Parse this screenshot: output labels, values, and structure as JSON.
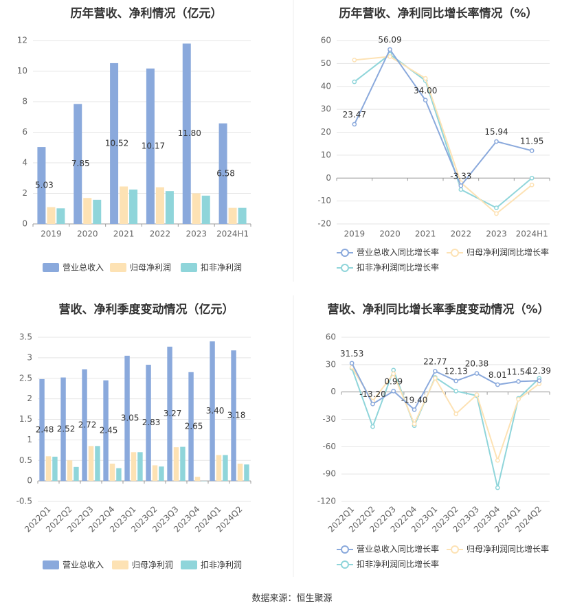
{
  "footer": {
    "source_label": "数据来源：恒生聚源"
  },
  "colors": {
    "revenue": "#8aa9dc",
    "parent_profit": "#fde2b4",
    "deducted_profit": "#8fd5da",
    "yoy_revenue": "#8aa9dc",
    "yoy_parent": "#fde2b4",
    "yoy_deducted": "#8fd5da",
    "grid": "#e5e5e5",
    "axis": "#999999",
    "text": "#666666",
    "title": "#333333",
    "divider": "#eeeeee"
  },
  "chart_data": [
    {
      "id": "annual-bar",
      "type": "bar",
      "title": "历年营收、净利情况（亿元）",
      "categories": [
        "2019",
        "2020",
        "2021",
        "2022",
        "2023",
        "2024H1"
      ],
      "y_ticks": [
        "0",
        "2",
        "4",
        "6",
        "8",
        "10",
        "12"
      ],
      "ylim": [
        0,
        12
      ],
      "series": [
        {
          "name": "营业总收入",
          "values": [
            5.03,
            7.85,
            10.52,
            10.17,
            11.8,
            6.58
          ],
          "labels": [
            "5.03",
            "7.85",
            "10.52",
            "10.17",
            "11.80",
            "6.58"
          ]
        },
        {
          "name": "归母净利润",
          "values": [
            1.1,
            1.7,
            2.45,
            2.4,
            2.0,
            1.05
          ]
        },
        {
          "name": "扣非净利润",
          "values": [
            1.02,
            1.58,
            2.25,
            2.15,
            1.85,
            1.05
          ]
        }
      ],
      "legend": [
        "营业总收入",
        "归母净利润",
        "扣非净利润"
      ]
    },
    {
      "id": "annual-line",
      "type": "line",
      "title": "历年营收、净利同比增长率情况（%）",
      "categories": [
        "2019",
        "2020",
        "2021",
        "2022",
        "2023",
        "2024H1"
      ],
      "y_ticks": [
        "-20",
        "-10",
        "0",
        "10",
        "20",
        "30",
        "40",
        "50",
        "60"
      ],
      "ylim": [
        -20,
        60
      ],
      "series": [
        {
          "name": "营业总收入同比增长率",
          "values": [
            23.47,
            56.09,
            34.0,
            -3.33,
            15.94,
            11.95
          ],
          "labels": [
            "23.47",
            "56.09",
            "34.00",
            "-3.33",
            "15.94",
            "11.95"
          ]
        },
        {
          "name": "归母净利润同比增长率",
          "values": [
            51.5,
            53.0,
            43.5,
            -2.0,
            -15.5,
            -3.0
          ]
        },
        {
          "name": "扣非净利润同比增长率",
          "values": [
            42.0,
            54.0,
            42.5,
            -5.0,
            -13.0,
            0.0
          ]
        }
      ],
      "legend": [
        "营业总收入同比增长率",
        "归母净利润同比增长率",
        "扣非净利润同比增长率"
      ]
    },
    {
      "id": "quarter-bar",
      "type": "bar",
      "title": "营收、净利季度变动情况（亿元）",
      "categories": [
        "2022Q1",
        "2022Q2",
        "2022Q3",
        "2022Q4",
        "2023Q1",
        "2023Q2",
        "2023Q3",
        "2023Q4",
        "2024Q1",
        "2024Q2"
      ],
      "y_ticks": [
        "-0.5",
        "0",
        "0.5",
        "1",
        "1.5",
        "2",
        "2.5",
        "3",
        "3.5"
      ],
      "ylim": [
        -0.5,
        3.5
      ],
      "series": [
        {
          "name": "营业总收入",
          "values": [
            2.48,
            2.52,
            2.72,
            2.45,
            3.05,
            2.83,
            3.27,
            2.65,
            3.4,
            3.18
          ],
          "labels": [
            "2.48",
            "2.52",
            "2.72",
            "2.45",
            "3.05",
            "2.83",
            "3.27",
            "2.65",
            "3.40",
            "3.18"
          ]
        },
        {
          "name": "归母净利润",
          "values": [
            0.6,
            0.5,
            0.85,
            0.42,
            0.7,
            0.38,
            0.82,
            0.1,
            0.63,
            0.42
          ]
        },
        {
          "name": "扣非净利润",
          "values": [
            0.59,
            0.34,
            0.85,
            0.31,
            0.7,
            0.35,
            0.83,
            0.0,
            0.63,
            0.4
          ]
        }
      ],
      "legend": [
        "营业总收入",
        "归母净利润",
        "扣非净利润"
      ]
    },
    {
      "id": "quarter-line",
      "type": "line",
      "title": "营收、净利同比增长率季度变动情况（%）",
      "categories": [
        "2022Q1",
        "2022Q2",
        "2022Q3",
        "2022Q4",
        "2023Q1",
        "2023Q2",
        "2023Q3",
        "2023Q4",
        "2024Q1",
        "2024Q2"
      ],
      "y_ticks": [
        "-120",
        "-90",
        "-60",
        "-30",
        "0",
        "30",
        "60"
      ],
      "ylim": [
        -120,
        60
      ],
      "series": [
        {
          "name": "营业总收入同比增长率",
          "values": [
            31.53,
            -13.2,
            0.99,
            -19.4,
            22.77,
            12.13,
            20.38,
            8.01,
            11.54,
            12.39
          ],
          "labels": [
            "31.53",
            "-13.20",
            "0.99",
            "-19.40",
            "22.77",
            "12.13",
            "20.38",
            "8.01",
            "11.54",
            "12.39"
          ]
        },
        {
          "name": "归母净利润同比增长率",
          "values": [
            27,
            -10,
            20,
            -35,
            15,
            -24,
            -3,
            -75,
            -8,
            9
          ]
        },
        {
          "name": "扣非净利润同比增长率",
          "values": [
            26,
            -38,
            24,
            -37,
            16,
            1,
            -4,
            -105,
            -7,
            15
          ]
        }
      ],
      "legend": [
        "营业总收入同比增长率",
        "归母净利润同比增长率",
        "扣非净利润同比增长率"
      ]
    }
  ]
}
